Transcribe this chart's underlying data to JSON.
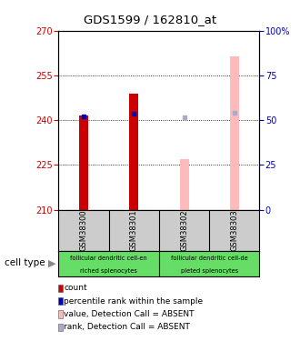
{
  "title": "GDS1599 / 162810_at",
  "samples": [
    "GSM38300",
    "GSM38301",
    "GSM38302",
    "GSM38303"
  ],
  "ylim_left": [
    210,
    270
  ],
  "ylim_right": [
    0,
    100
  ],
  "yticks_left": [
    210,
    225,
    240,
    255,
    270
  ],
  "yticks_right": [
    0,
    25,
    50,
    75,
    100
  ],
  "bar_bottom": 210,
  "count_values": [
    241.5,
    249.0,
    null,
    null
  ],
  "count_color": "#cc0000",
  "rank_values": [
    241.2,
    242.3,
    null,
    null
  ],
  "rank_color": "#0000bb",
  "absent_value_values": [
    null,
    null,
    227.0,
    261.5
  ],
  "absent_value_color": "#ffbbbb",
  "absent_rank_values": [
    null,
    null,
    241.0,
    242.5
  ],
  "absent_rank_color": "#aaaacc",
  "bar_width": 0.18,
  "legend_items": [
    {
      "color": "#cc0000",
      "label": "count"
    },
    {
      "color": "#0000bb",
      "label": "percentile rank within the sample"
    },
    {
      "color": "#ffbbbb",
      "label": "value, Detection Call = ABSENT"
    },
    {
      "color": "#aaaacc",
      "label": "rank, Detection Call = ABSENT"
    }
  ],
  "left_tick_color": "#cc0000",
  "right_tick_color": "#0000bb",
  "plot_bg": "#ffffff",
  "sample_box_bg": "#cccccc",
  "cell_type_bg": "#66dd66"
}
